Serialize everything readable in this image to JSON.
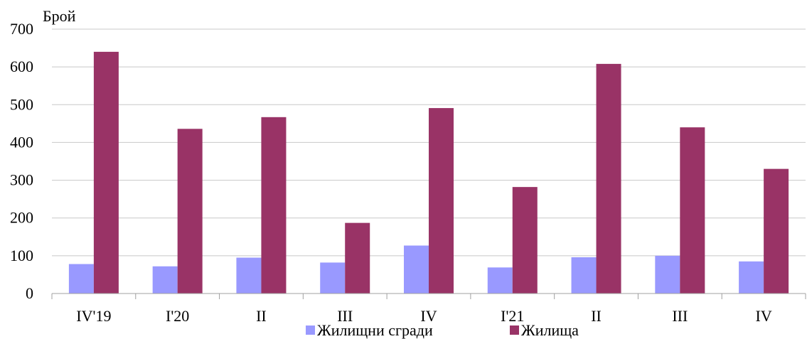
{
  "chart_data": {
    "type": "bar",
    "ylabel": "Брой",
    "ylim": [
      0,
      700
    ],
    "yticks": [
      0,
      100,
      200,
      300,
      400,
      500,
      600,
      700
    ],
    "grid": true,
    "legend_position": "bottom",
    "categories": [
      "IV'19",
      "I'20",
      "II",
      "III",
      "IV",
      "I'21",
      "II",
      "III",
      "IV"
    ],
    "series": [
      {
        "name": "Жилищни сгради",
        "color": "#9999ff",
        "values": [
          78,
          72,
          95,
          82,
          127,
          69,
          96,
          100,
          85
        ]
      },
      {
        "name": "Жилища",
        "color": "#993366",
        "values": [
          640,
          436,
          467,
          187,
          491,
          282,
          608,
          440,
          330
        ]
      }
    ]
  }
}
